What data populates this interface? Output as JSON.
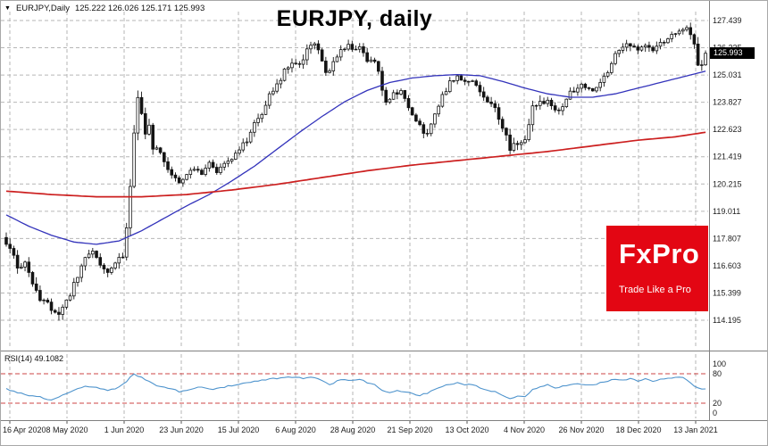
{
  "header": {
    "symbol_info": "EURJPY,Daily",
    "ohlc_text": "125.222 126.026 125.171 125.993"
  },
  "title": {
    "text": "EURJPY, daily"
  },
  "logo": {
    "brand": "FxPro",
    "tagline": "Trade Like a Pro",
    "bg_color": "#e30613",
    "text_color": "#ffffff"
  },
  "colors": {
    "grid": "#b6b6b6",
    "candle": "#141414",
    "ma_fast": "#3333bb",
    "ma_slow": "#cc1f1f",
    "rsi": "#4f94cd",
    "rsi_level": "#cc4444",
    "axis_text": "#1c1c1c",
    "separator": "#808080",
    "price_marker_bg": "#000000"
  },
  "price_axis": {
    "labels": [
      "127.439",
      "126.235",
      "125.031",
      "123.827",
      "122.623",
      "121.419",
      "120.215",
      "119.011",
      "117.807",
      "116.603",
      "115.399",
      "114.195"
    ],
    "current_price": "125.993"
  },
  "time_axis": {
    "labels": [
      "16 Apr 2020",
      "8 May 2020",
      "1 Jun 2020",
      "23 Jun 2020",
      "15 Jul 2020",
      "6 Aug 2020",
      "28 Aug 2020",
      "21 Sep 2020",
      "13 Oct 2020",
      "4 Nov 2020",
      "26 Nov 2020",
      "18 Dec 2020",
      "13 Jan 2021"
    ]
  },
  "rsi_panel": {
    "label": "RSI(14) 49.1082",
    "axis_labels": [
      "100",
      "80",
      "20",
      "0"
    ]
  },
  "chart_data": {
    "type": "candlestick",
    "title": "EURJPY, daily",
    "symbol": "EURJPY",
    "timeframe": "Daily",
    "ylim": [
      114.195,
      127.439
    ],
    "price_ticks": [
      127.439,
      126.235,
      125.031,
      123.827,
      122.623,
      121.419,
      120.215,
      119.011,
      117.807,
      116.603,
      115.399,
      114.195
    ],
    "x_tick_labels": [
      "16 Apr 2020",
      "8 May 2020",
      "1 Jun 2020",
      "23 Jun 2020",
      "15 Jul 2020",
      "6 Aug 2020",
      "28 Aug 2020",
      "21 Sep 2020",
      "13 Oct 2020",
      "4 Nov 2020",
      "26 Nov 2020",
      "18 Dec 2020",
      "13 Jan 2021"
    ],
    "ohlc_current": {
      "open": 125.222,
      "high": 126.026,
      "low": 125.171,
      "close": 125.993
    },
    "last_price": 125.993,
    "candle_count": 187,
    "close_anchors": [
      [
        0,
        117.55
      ],
      [
        2,
        117.1
      ],
      [
        3,
        116.4
      ],
      [
        5,
        116.8
      ],
      [
        7,
        115.7
      ],
      [
        9,
        115.2
      ],
      [
        11,
        114.9
      ],
      [
        13,
        114.45
      ],
      [
        15,
        114.7
      ],
      [
        17,
        115.4
      ],
      [
        19,
        116.1
      ],
      [
        21,
        116.9
      ],
      [
        23,
        117.3
      ],
      [
        25,
        116.6
      ],
      [
        27,
        116.3
      ],
      [
        29,
        116.8
      ],
      [
        31,
        117.0
      ],
      [
        32,
        118.4
      ],
      [
        33,
        120.3
      ],
      [
        34,
        122.6
      ],
      [
        35,
        123.9
      ],
      [
        36,
        123.2
      ],
      [
        37,
        122.5
      ],
      [
        38,
        122.95
      ],
      [
        39,
        121.9
      ],
      [
        41,
        121.6
      ],
      [
        43,
        120.9
      ],
      [
        45,
        120.5
      ],
      [
        46,
        120.3
      ],
      [
        48,
        120.7
      ],
      [
        50,
        120.9
      ],
      [
        52,
        120.6
      ],
      [
        54,
        121.1
      ],
      [
        56,
        120.8
      ],
      [
        58,
        121.2
      ],
      [
        60,
        121.4
      ],
      [
        62,
        121.8
      ],
      [
        64,
        122.1
      ],
      [
        66,
        122.9
      ],
      [
        68,
        123.4
      ],
      [
        70,
        124.2
      ],
      [
        72,
        124.6
      ],
      [
        74,
        125.2
      ],
      [
        76,
        125.6
      ],
      [
        78,
        125.4
      ],
      [
        80,
        126.1
      ],
      [
        82,
        126.35
      ],
      [
        84,
        125.7
      ],
      [
        85,
        125.1
      ],
      [
        87,
        125.5
      ],
      [
        89,
        126.1
      ],
      [
        91,
        126.35
      ],
      [
        92,
        126.1
      ],
      [
        94,
        126.25
      ],
      [
        96,
        125.7
      ],
      [
        98,
        125.5
      ],
      [
        99,
        125.1
      ],
      [
        100,
        124.5
      ],
      [
        101,
        123.85
      ],
      [
        103,
        124.15
      ],
      [
        105,
        124.35
      ],
      [
        107,
        123.6
      ],
      [
        109,
        122.95
      ],
      [
        111,
        122.55
      ],
      [
        112,
        122.4
      ],
      [
        114,
        123.3
      ],
      [
        116,
        124.1
      ],
      [
        118,
        124.7
      ],
      [
        120,
        125.0
      ],
      [
        122,
        124.75
      ],
      [
        124,
        124.85
      ],
      [
        126,
        124.3
      ],
      [
        128,
        123.85
      ],
      [
        130,
        123.6
      ],
      [
        132,
        122.7
      ],
      [
        134,
        121.8
      ],
      [
        136,
        121.95
      ],
      [
        138,
        122.1
      ],
      [
        139,
        122.9
      ],
      [
        140,
        123.55
      ],
      [
        142,
        123.8
      ],
      [
        144,
        124.0
      ],
      [
        146,
        123.4
      ],
      [
        148,
        123.6
      ],
      [
        150,
        124.25
      ],
      [
        152,
        124.5
      ],
      [
        154,
        124.55
      ],
      [
        156,
        124.35
      ],
      [
        158,
        124.7
      ],
      [
        160,
        125.1
      ],
      [
        162,
        125.9
      ],
      [
        164,
        126.25
      ],
      [
        166,
        126.4
      ],
      [
        168,
        126.2
      ],
      [
        170,
        126.35
      ],
      [
        172,
        126.15
      ],
      [
        174,
        126.45
      ],
      [
        176,
        126.6
      ],
      [
        178,
        126.95
      ],
      [
        180,
        127.1
      ],
      [
        181,
        127.2
      ],
      [
        182,
        126.85
      ],
      [
        183,
        126.3
      ],
      [
        184,
        125.4
      ],
      [
        185,
        125.6
      ],
      [
        186,
        125.993
      ]
    ],
    "volatility_anchors": [
      [
        0,
        0.35
      ],
      [
        8,
        0.4
      ],
      [
        14,
        0.38
      ],
      [
        20,
        0.3
      ],
      [
        28,
        0.28
      ],
      [
        33,
        0.5
      ],
      [
        36,
        0.45
      ],
      [
        44,
        0.25
      ],
      [
        56,
        0.22
      ],
      [
        64,
        0.28
      ],
      [
        74,
        0.3
      ],
      [
        84,
        0.32
      ],
      [
        94,
        0.28
      ],
      [
        101,
        0.38
      ],
      [
        110,
        0.3
      ],
      [
        120,
        0.24
      ],
      [
        132,
        0.35
      ],
      [
        139,
        0.5
      ],
      [
        146,
        0.28
      ],
      [
        158,
        0.25
      ],
      [
        166,
        0.3
      ],
      [
        176,
        0.25
      ],
      [
        181,
        0.3
      ],
      [
        184,
        0.45
      ],
      [
        186,
        0.25
      ]
    ],
    "overlays": [
      {
        "name": "moving-average-fast-blue",
        "points": [
          [
            0,
            118.85
          ],
          [
            6,
            118.35
          ],
          [
            12,
            117.95
          ],
          [
            18,
            117.65
          ],
          [
            24,
            117.55
          ],
          [
            30,
            117.7
          ],
          [
            36,
            118.15
          ],
          [
            42,
            118.7
          ],
          [
            48,
            119.25
          ],
          [
            54,
            119.75
          ],
          [
            60,
            120.35
          ],
          [
            66,
            121.0
          ],
          [
            72,
            121.75
          ],
          [
            78,
            122.5
          ],
          [
            84,
            123.2
          ],
          [
            90,
            123.85
          ],
          [
            96,
            124.35
          ],
          [
            102,
            124.7
          ],
          [
            108,
            124.9
          ],
          [
            114,
            125.0
          ],
          [
            120,
            125.05
          ],
          [
            126,
            125.0
          ],
          [
            132,
            124.75
          ],
          [
            138,
            124.45
          ],
          [
            144,
            124.2
          ],
          [
            150,
            124.05
          ],
          [
            156,
            124.05
          ],
          [
            162,
            124.2
          ],
          [
            168,
            124.45
          ],
          [
            174,
            124.7
          ],
          [
            180,
            124.95
          ],
          [
            186,
            125.2
          ]
        ]
      },
      {
        "name": "moving-average-slow-red",
        "points": [
          [
            0,
            119.9
          ],
          [
            12,
            119.75
          ],
          [
            24,
            119.65
          ],
          [
            36,
            119.65
          ],
          [
            48,
            119.75
          ],
          [
            60,
            119.95
          ],
          [
            72,
            120.2
          ],
          [
            84,
            120.5
          ],
          [
            96,
            120.8
          ],
          [
            108,
            121.05
          ],
          [
            120,
            121.25
          ],
          [
            132,
            121.45
          ],
          [
            144,
            121.65
          ],
          [
            156,
            121.9
          ],
          [
            168,
            122.15
          ],
          [
            178,
            122.3
          ],
          [
            186,
            122.5
          ]
        ]
      }
    ],
    "rsi": {
      "label": "RSI(14)",
      "current": 49.1082,
      "range": [
        0,
        100
      ],
      "axis_ticks": [
        100,
        80,
        20,
        0
      ],
      "levels": [
        80,
        20
      ],
      "points": [
        [
          0,
          50
        ],
        [
          3,
          42
        ],
        [
          6,
          36
        ],
        [
          9,
          32
        ],
        [
          12,
          27
        ],
        [
          15,
          36
        ],
        [
          18,
          47
        ],
        [
          21,
          56
        ],
        [
          24,
          51
        ],
        [
          27,
          46
        ],
        [
          30,
          52
        ],
        [
          32,
          65
        ],
        [
          34,
          80
        ],
        [
          36,
          72
        ],
        [
          38,
          64
        ],
        [
          40,
          57
        ],
        [
          43,
          51
        ],
        [
          46,
          44
        ],
        [
          49,
          49
        ],
        [
          52,
          53
        ],
        [
          55,
          49
        ],
        [
          58,
          53
        ],
        [
          61,
          57
        ],
        [
          64,
          61
        ],
        [
          67,
          65
        ],
        [
          70,
          69
        ],
        [
          73,
          71
        ],
        [
          76,
          73
        ],
        [
          79,
          71
        ],
        [
          82,
          73
        ],
        [
          84,
          66
        ],
        [
          86,
          58
        ],
        [
          88,
          65
        ],
        [
          90,
          69
        ],
        [
          92,
          67
        ],
        [
          94,
          69
        ],
        [
          96,
          62
        ],
        [
          98,
          57
        ],
        [
          100,
          47
        ],
        [
          102,
          41
        ],
        [
          104,
          47
        ],
        [
          106,
          43
        ],
        [
          108,
          39
        ],
        [
          110,
          35
        ],
        [
          112,
          41
        ],
        [
          114,
          49
        ],
        [
          116,
          55
        ],
        [
          118,
          59
        ],
        [
          120,
          61
        ],
        [
          122,
          57
        ],
        [
          124,
          59
        ],
        [
          126,
          52
        ],
        [
          128,
          47
        ],
        [
          130,
          43
        ],
        [
          132,
          35
        ],
        [
          134,
          30
        ],
        [
          136,
          35
        ],
        [
          138,
          33
        ],
        [
          140,
          49
        ],
        [
          142,
          53
        ],
        [
          144,
          57
        ],
        [
          146,
          50
        ],
        [
          148,
          55
        ],
        [
          150,
          59
        ],
        [
          152,
          61
        ],
        [
          154,
          56
        ],
        [
          156,
          58
        ],
        [
          158,
          61
        ],
        [
          160,
          65
        ],
        [
          162,
          70
        ],
        [
          164,
          67
        ],
        [
          166,
          71
        ],
        [
          168,
          66
        ],
        [
          170,
          69
        ],
        [
          172,
          64
        ],
        [
          174,
          69
        ],
        [
          176,
          71
        ],
        [
          178,
          74
        ],
        [
          180,
          71
        ],
        [
          182,
          62
        ],
        [
          184,
          50
        ],
        [
          186,
          49.1
        ]
      ]
    }
  }
}
